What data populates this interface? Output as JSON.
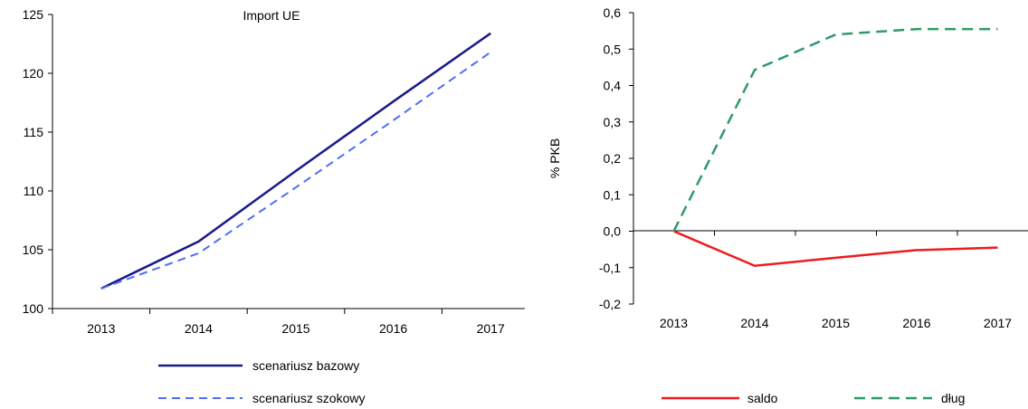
{
  "chart_data": [
    {
      "type": "line",
      "title": "Import UE",
      "xlabel": "",
      "ylabel": "",
      "x": [
        "2013",
        "2014",
        "2015",
        "2016",
        "2017"
      ],
      "y_ticks": [
        "100",
        "105",
        "110",
        "115",
        "120",
        "125"
      ],
      "ylim": [
        100,
        125
      ],
      "series": [
        {
          "name": "scenariusz bazowy",
          "values": [
            101.7,
            105.7,
            111.7,
            117.6,
            123.4
          ],
          "color": "#1a1a8c",
          "dash": "solid"
        },
        {
          "name": "scenariusz szokowy",
          "values": [
            101.7,
            104.7,
            110.3,
            116.0,
            121.8
          ],
          "color": "#4d6ef5",
          "dash": "dashed"
        }
      ],
      "legend_position": "bottom"
    },
    {
      "type": "line",
      "title": "",
      "xlabel": "",
      "ylabel": "% PKB",
      "x": [
        "2013",
        "2014",
        "2015",
        "2016",
        "2017"
      ],
      "y_ticks": [
        "-0,2",
        "-0,1",
        "0,0",
        "0,1",
        "0,2",
        "0,3",
        "0,4",
        "0,5",
        "0,6"
      ],
      "ylim": [
        -0.2,
        0.6
      ],
      "series": [
        {
          "name": "saldo",
          "values": [
            0.0,
            -0.095,
            -0.073,
            -0.052,
            -0.045
          ],
          "color": "#ee1c1c",
          "dash": "solid"
        },
        {
          "name": "dług",
          "values": [
            0.0,
            0.443,
            0.54,
            0.555,
            0.555
          ],
          "color": "#2e9a66",
          "dash": "dashed"
        }
      ],
      "legend_position": "bottom"
    }
  ]
}
